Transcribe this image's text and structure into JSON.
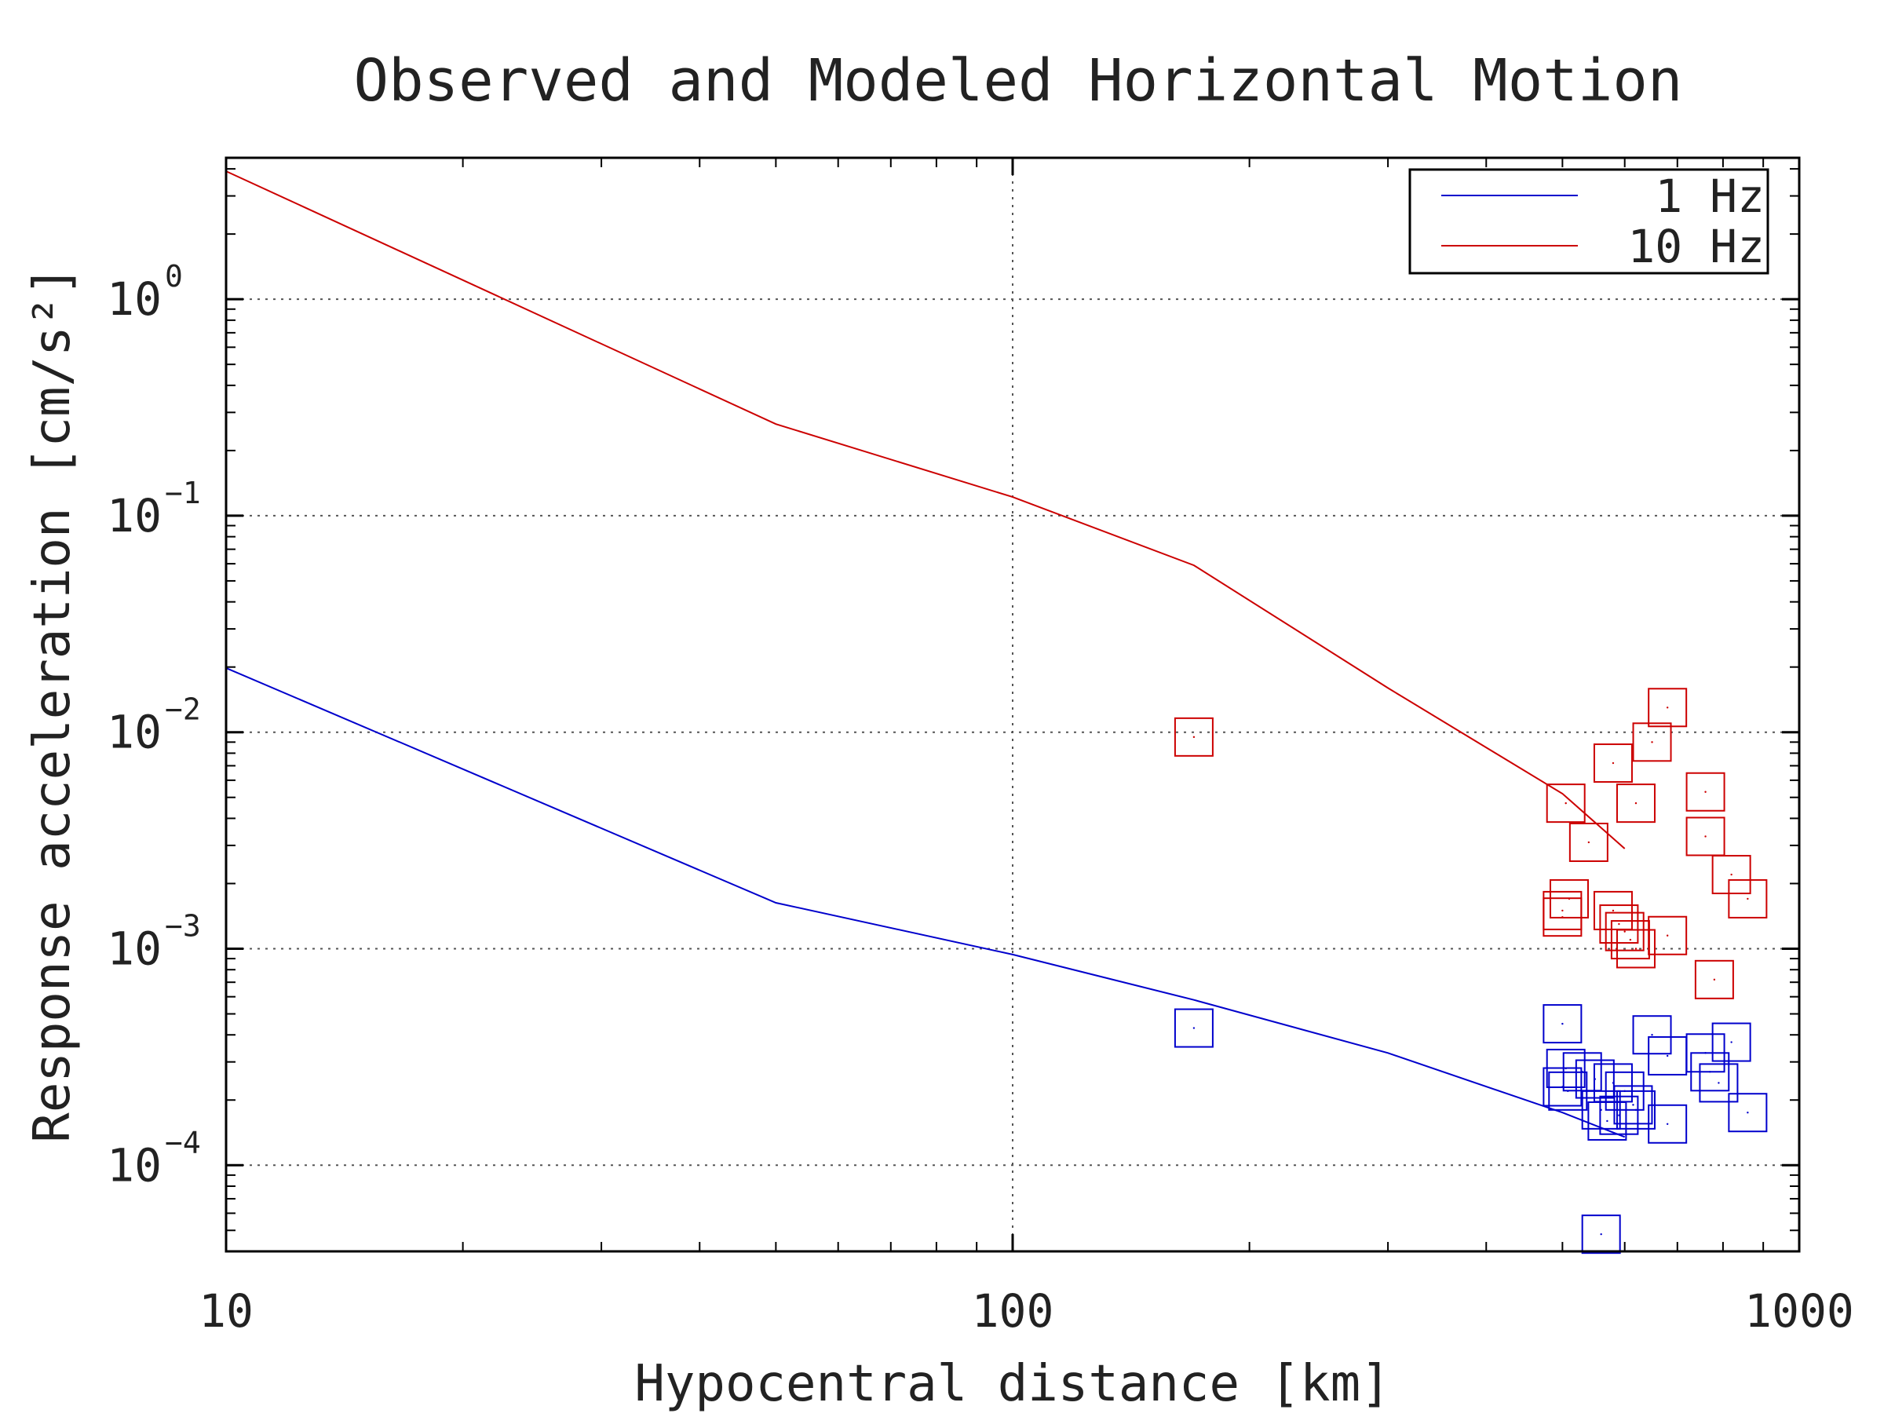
{
  "chart_data": {
    "type": "scatter",
    "title": "Observed and Modeled Horizontal Motion",
    "xlabel": "Hypocentral distance [km]",
    "ylabel": "Response acceleration [cm/s²]",
    "xscale": "log",
    "yscale": "log",
    "xlim": [
      10,
      1000
    ],
    "ylim": [
      4e-05,
      4.5
    ],
    "grid": true,
    "legend_position": "top-right",
    "x_ticks": [
      {
        "value": 10,
        "label": "10"
      },
      {
        "value": 100,
        "label": "100"
      },
      {
        "value": 1000,
        "label": "1000"
      }
    ],
    "y_ticks": [
      {
        "value": 1,
        "base": "10",
        "exp": "0"
      },
      {
        "value": 0.1,
        "base": "10",
        "exp": "−1"
      },
      {
        "value": 0.01,
        "base": "10",
        "exp": "−2"
      },
      {
        "value": 0.001,
        "base": "10",
        "exp": "−3"
      },
      {
        "value": 0.0001,
        "base": "10",
        "exp": "−4"
      }
    ],
    "series": [
      {
        "name": "1 Hz",
        "color": "#0000cc",
        "line": [
          [
            10,
            0.0198
          ],
          [
            50,
            0.00163
          ],
          [
            100,
            0.00094
          ],
          [
            170,
            0.00058
          ],
          [
            300,
            0.00033
          ],
          [
            500,
            0.000175
          ],
          [
            600,
            0.000135
          ]
        ],
        "points": [
          [
            170,
            0.00043
          ],
          [
            500,
            0.00045
          ],
          [
            505,
            0.00028
          ],
          [
            500,
            0.00023
          ],
          [
            508,
            0.00022
          ],
          [
            530,
            0.00027
          ],
          [
            550,
            0.00025
          ],
          [
            560,
            0.00018
          ],
          [
            570,
            0.00016
          ],
          [
            580,
            0.00024
          ],
          [
            590,
            0.00017
          ],
          [
            600,
            0.00022
          ],
          [
            615,
            0.00019
          ],
          [
            620,
            0.00018
          ],
          [
            650,
            0.0004
          ],
          [
            680,
            0.00032
          ],
          [
            680,
            0.000155
          ],
          [
            760,
            0.00033
          ],
          [
            770,
            0.00027
          ],
          [
            790,
            0.00024
          ],
          [
            820,
            0.00037
          ],
          [
            860,
            0.000175
          ],
          [
            560,
            4.8e-05
          ]
        ]
      },
      {
        "name": "10 Hz",
        "color": "#cc0000",
        "line": [
          [
            10,
            3.9
          ],
          [
            50,
            0.265
          ],
          [
            100,
            0.122
          ],
          [
            170,
            0.059
          ],
          [
            300,
            0.016
          ],
          [
            500,
            0.0052
          ],
          [
            600,
            0.0029
          ]
        ],
        "points": [
          [
            170,
            0.0095
          ],
          [
            505,
            0.0047
          ],
          [
            500,
            0.0015
          ],
          [
            500,
            0.0014
          ],
          [
            510,
            0.0017
          ],
          [
            540,
            0.0031
          ],
          [
            580,
            0.0072
          ],
          [
            580,
            0.0015
          ],
          [
            590,
            0.0013
          ],
          [
            600,
            0.0012
          ],
          [
            610,
            0.0011
          ],
          [
            620,
            0.0047
          ],
          [
            620,
            0.001
          ],
          [
            650,
            0.009
          ],
          [
            680,
            0.013
          ],
          [
            680,
            0.00115
          ],
          [
            760,
            0.0053
          ],
          [
            760,
            0.0033
          ],
          [
            780,
            0.00072
          ],
          [
            820,
            0.0022
          ],
          [
            860,
            0.0017
          ]
        ]
      }
    ]
  }
}
